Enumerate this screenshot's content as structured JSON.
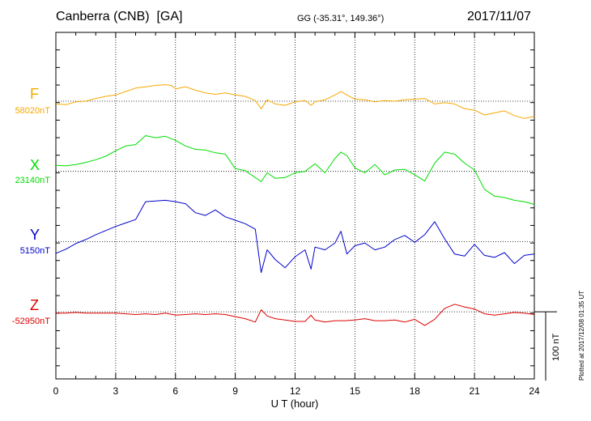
{
  "header": {
    "station": "Canberra (CNB)  [GA]",
    "coords": "GG (-35.31°, 149.36°)",
    "date": "2017/11/07"
  },
  "side_note": "Plotted at 2017/12/08 01:35 UT",
  "scale_label": "100 nT",
  "colors": {
    "F": "#f5a800",
    "X": "#00dd00",
    "Y": "#0000cc",
    "Z": "#dd0000",
    "axis": "#000000",
    "grid": "#000000"
  },
  "chart_data": {
    "type": "line",
    "title": "Canberra (CNB)  [GA]",
    "xlabel": "U T (hour)",
    "ylabel": "",
    "xlim": [
      0,
      24
    ],
    "x_ticks": [
      "0",
      "3",
      "6",
      "9",
      "12",
      "15",
      "18",
      "21",
      "24"
    ],
    "grid": true,
    "scale_bar_nT": 100,
    "series": [
      {
        "name": "F",
        "baseline": "58020nT",
        "offset_nT": 0,
        "points": [
          [
            0,
            -4
          ],
          [
            0.5,
            -5
          ],
          [
            1,
            -1
          ],
          [
            1.5,
            0
          ],
          [
            2,
            4
          ],
          [
            2.5,
            7
          ],
          [
            3,
            9
          ],
          [
            3.5,
            14
          ],
          [
            4,
            19
          ],
          [
            4.5,
            21
          ],
          [
            5,
            23
          ],
          [
            5.5,
            24
          ],
          [
            5.8,
            23
          ],
          [
            6,
            18
          ],
          [
            6.5,
            21
          ],
          [
            7,
            16
          ],
          [
            7.5,
            12
          ],
          [
            8,
            10
          ],
          [
            8.5,
            12
          ],
          [
            9,
            9
          ],
          [
            9.5,
            7
          ],
          [
            10,
            1
          ],
          [
            10.3,
            -11
          ],
          [
            10.6,
            2
          ],
          [
            11,
            -4
          ],
          [
            11.5,
            -6
          ],
          [
            12,
            -1
          ],
          [
            12.5,
            1
          ],
          [
            12.8,
            -6
          ],
          [
            13,
            -1
          ],
          [
            13.5,
            2
          ],
          [
            14,
            9
          ],
          [
            14.3,
            14
          ],
          [
            14.6,
            9
          ],
          [
            15,
            3
          ],
          [
            15.5,
            2
          ],
          [
            16,
            -1
          ],
          [
            16.5,
            1
          ],
          [
            17,
            0
          ],
          [
            17.5,
            2
          ],
          [
            18,
            3
          ],
          [
            18.5,
            4
          ],
          [
            19,
            -4
          ],
          [
            19.5,
            -2
          ],
          [
            20,
            -4
          ],
          [
            20.5,
            -11
          ],
          [
            21,
            -13
          ],
          [
            21.5,
            -20
          ],
          [
            22,
            -17
          ],
          [
            22.5,
            -14
          ],
          [
            23,
            -21
          ],
          [
            23.5,
            -25
          ],
          [
            24,
            -22
          ]
        ]
      },
      {
        "name": "X",
        "baseline": "23140nT",
        "offset_nT": -102,
        "points": [
          [
            0,
            9
          ],
          [
            0.5,
            8
          ],
          [
            1,
            10
          ],
          [
            1.5,
            13
          ],
          [
            2,
            17
          ],
          [
            2.5,
            22
          ],
          [
            3,
            30
          ],
          [
            3.5,
            37
          ],
          [
            4,
            39
          ],
          [
            4.5,
            52
          ],
          [
            5,
            49
          ],
          [
            5.5,
            51
          ],
          [
            6,
            45
          ],
          [
            6.5,
            37
          ],
          [
            7,
            32
          ],
          [
            7.5,
            31
          ],
          [
            8,
            27
          ],
          [
            8.5,
            25
          ],
          [
            9,
            4
          ],
          [
            9.5,
            1
          ],
          [
            10,
            -9
          ],
          [
            10.3,
            -15
          ],
          [
            10.6,
            -2
          ],
          [
            11,
            -10
          ],
          [
            11.5,
            -9
          ],
          [
            12,
            -2
          ],
          [
            12.5,
            0
          ],
          [
            13,
            11
          ],
          [
            13.5,
            -2
          ],
          [
            14,
            19
          ],
          [
            14.3,
            28
          ],
          [
            14.6,
            23
          ],
          [
            15,
            5
          ],
          [
            15.5,
            -2
          ],
          [
            16,
            10
          ],
          [
            16.5,
            -5
          ],
          [
            17,
            2
          ],
          [
            17.5,
            3
          ],
          [
            18,
            -5
          ],
          [
            18.5,
            -14
          ],
          [
            19,
            12
          ],
          [
            19.5,
            28
          ],
          [
            20,
            25
          ],
          [
            20.5,
            12
          ],
          [
            21,
            2
          ],
          [
            21.5,
            -26
          ],
          [
            22,
            -36
          ],
          [
            22.5,
            -38
          ],
          [
            23,
            -42
          ],
          [
            23.5,
            -44
          ],
          [
            24,
            -48
          ]
        ]
      },
      {
        "name": "Y",
        "baseline": "5150nT",
        "offset_nT": -204,
        "points": [
          [
            0,
            -17
          ],
          [
            0.5,
            -11
          ],
          [
            1,
            -3
          ],
          [
            1.5,
            3
          ],
          [
            2,
            10
          ],
          [
            2.5,
            16
          ],
          [
            3,
            22
          ],
          [
            3.5,
            27
          ],
          [
            4,
            32
          ],
          [
            4.5,
            58
          ],
          [
            5,
            59
          ],
          [
            5.5,
            60
          ],
          [
            6,
            58
          ],
          [
            6.5,
            55
          ],
          [
            7,
            42
          ],
          [
            7.5,
            38
          ],
          [
            8,
            46
          ],
          [
            8.5,
            36
          ],
          [
            9,
            31
          ],
          [
            9.5,
            26
          ],
          [
            10,
            18
          ],
          [
            10.3,
            -45
          ],
          [
            10.6,
            -12
          ],
          [
            11,
            -26
          ],
          [
            11.5,
            -38
          ],
          [
            12,
            -22
          ],
          [
            12.5,
            -12
          ],
          [
            12.8,
            -40
          ],
          [
            13,
            -8
          ],
          [
            13.5,
            -12
          ],
          [
            14,
            -2
          ],
          [
            14.3,
            15
          ],
          [
            14.6,
            -18
          ],
          [
            15,
            -6
          ],
          [
            15.5,
            -2
          ],
          [
            16,
            -12
          ],
          [
            16.5,
            -8
          ],
          [
            17,
            3
          ],
          [
            17.5,
            9
          ],
          [
            18,
            -1
          ],
          [
            18.5,
            10
          ],
          [
            19,
            29
          ],
          [
            19.5,
            4
          ],
          [
            20,
            -18
          ],
          [
            20.5,
            -21
          ],
          [
            21,
            -4
          ],
          [
            21.5,
            -20
          ],
          [
            22,
            -23
          ],
          [
            22.5,
            -16
          ],
          [
            23,
            -32
          ],
          [
            23.5,
            -20
          ],
          [
            24,
            -18
          ]
        ]
      },
      {
        "name": "Z",
        "baseline": "-52950nT",
        "offset_nT": -306,
        "points": [
          [
            0,
            -2
          ],
          [
            0.5,
            -2
          ],
          [
            1,
            -1
          ],
          [
            1.5,
            -2
          ],
          [
            2,
            -2
          ],
          [
            2.5,
            -2
          ],
          [
            3,
            -2
          ],
          [
            3.5,
            -3
          ],
          [
            4,
            -4
          ],
          [
            4.5,
            -3
          ],
          [
            5,
            -4
          ],
          [
            5.5,
            -2
          ],
          [
            6,
            -5
          ],
          [
            6.5,
            -4
          ],
          [
            7,
            -3
          ],
          [
            7.5,
            -4
          ],
          [
            8,
            -3
          ],
          [
            8.5,
            -4
          ],
          [
            9,
            -7
          ],
          [
            9.5,
            -10
          ],
          [
            10,
            -15
          ],
          [
            10.3,
            3
          ],
          [
            10.6,
            -6
          ],
          [
            11,
            -10
          ],
          [
            11.5,
            -12
          ],
          [
            12,
            -14
          ],
          [
            12.5,
            -14
          ],
          [
            12.8,
            -5
          ],
          [
            13,
            -12
          ],
          [
            13.5,
            -15
          ],
          [
            14,
            -13
          ],
          [
            14.5,
            -13
          ],
          [
            15,
            -12
          ],
          [
            15.5,
            -10
          ],
          [
            16,
            -13
          ],
          [
            16.5,
            -13
          ],
          [
            17,
            -12
          ],
          [
            17.5,
            -15
          ],
          [
            18,
            -11
          ],
          [
            18.5,
            -20
          ],
          [
            19,
            -11
          ],
          [
            19.5,
            5
          ],
          [
            20,
            11
          ],
          [
            20.5,
            7
          ],
          [
            21,
            4
          ],
          [
            21.5,
            -3
          ],
          [
            22,
            -5
          ],
          [
            22.5,
            -3
          ],
          [
            23,
            -1
          ],
          [
            23.5,
            -2
          ],
          [
            24,
            -4
          ]
        ]
      }
    ]
  }
}
